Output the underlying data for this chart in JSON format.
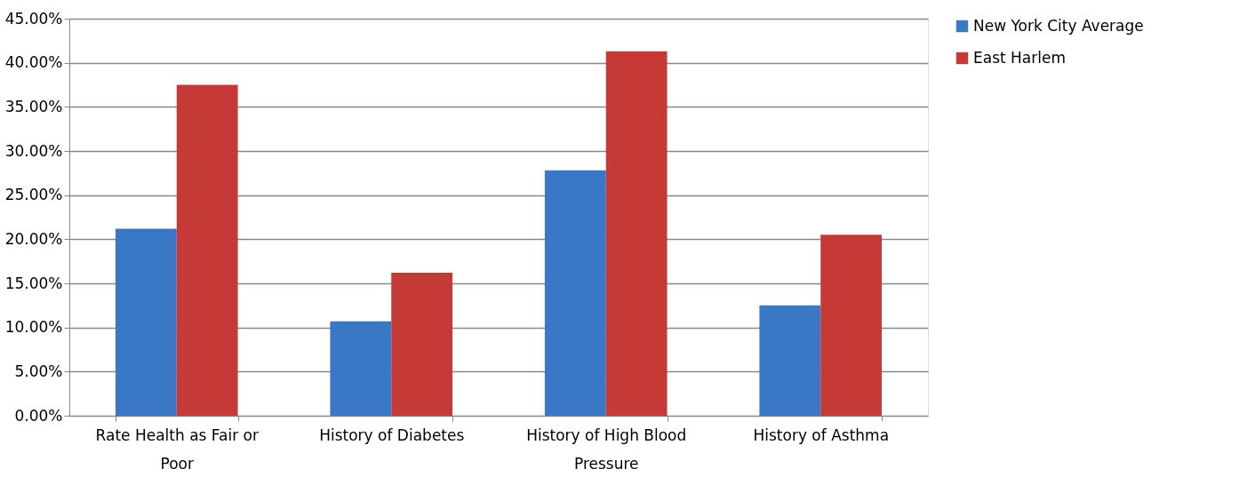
{
  "chart_data": {
    "type": "bar",
    "categories": [
      "Rate Health as Fair or Poor",
      "History of Diabetes",
      "History of High Blood Pressure",
      "History of Asthma"
    ],
    "series": [
      {
        "name": "New York City Average",
        "color": "#3a78c6",
        "values": [
          21.2,
          10.7,
          27.8,
          12.5
        ]
      },
      {
        "name": "East Harlem",
        "color": "#c53a37",
        "values": [
          37.5,
          16.2,
          41.3,
          20.5
        ]
      }
    ],
    "ylim": [
      0,
      45
    ],
    "yticks": [
      {
        "value": 0,
        "label": "0.00%"
      },
      {
        "value": 5,
        "label": "5.00%"
      },
      {
        "value": 10,
        "label": "10.00%"
      },
      {
        "value": 15,
        "label": "15.00%"
      },
      {
        "value": 20,
        "label": "20.00%"
      },
      {
        "value": 25,
        "label": "25.00%"
      },
      {
        "value": 30,
        "label": "30.00%"
      },
      {
        "value": 35,
        "label": "35.00%"
      },
      {
        "value": 40,
        "label": "40.00%"
      },
      {
        "value": 45,
        "label": "45.00%"
      }
    ],
    "grid": "y",
    "legend": "right"
  }
}
